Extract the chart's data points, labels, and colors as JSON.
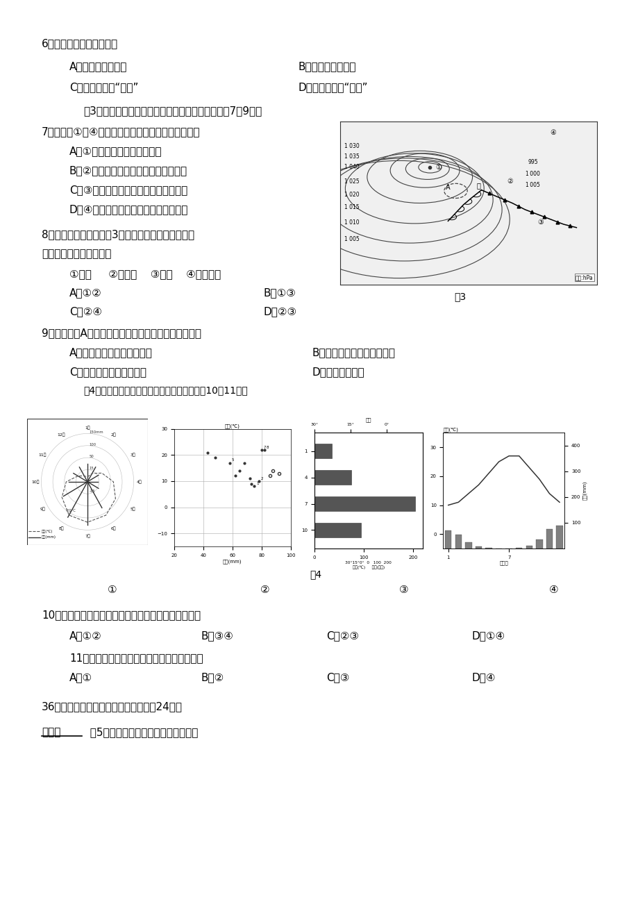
{
  "bg_color": "#ffffff",
  "text_color": "#000000",
  "content": {
    "q6_text": "6．图示区域的地形特点是",
    "q6_A": "A．北缓南陌的山地",
    "q6_B": "B．北陌南缓的山地",
    "q6_C": "C．北缓南陌的“天坑”",
    "q6_D": "D．北陌南缓的“天坑”",
    "fig3_intro": "图3为我国部分地区某日地面天气形势图。读图回筗7～9题。",
    "q7_text": "7．对图中①～④地天气及天气变化的叙述，正确的是",
    "q7_A": "A．①地此时为阴天，气压较高",
    "q7_B": "B．②地此时为大风降温天气，然后转晴",
    "q7_C": "C．③即将迎来阴雨天气，然后气温升高",
    "q7_D": "D．④地此时正受暖气团控制，温暖晴朗",
    "q8_line1": "8．若此天气形势出现在3月，我国西北、华北地区最",
    "q8_line2": "可能出现的灾害性天气是",
    "q8_items": "①寒潮     ②沙尘暴    ③台风    ④特大暴雨",
    "q8_A": "A．①②",
    "q8_B": "B．①③",
    "q8_C": "C．②④",
    "q8_D": "D．②③",
    "q9_text": "9．天气系统A（虚线处）向东移动并经过甲地。则甲地",
    "q9_A": "A．风向由偏南风转为偏西风",
    "q9_B": "B．经历一次降温、降水天气",
    "q9_C": "C．气压先下降然后再上升",
    "q9_D": "D．风力由大变小",
    "fig4_intro": "图4为四种气候类型气温降水资料图。读图完成10～11题。",
    "q10_text": "10．四种气候类型中，某季节气候特征的成因相同的是",
    "q10_A": "A．①②",
    "q10_B": "B．③④",
    "q10_C": "C．②③",
    "q10_D": "D．①④",
    "q11_text": "11．图示各气候类型中，我国只可能有其中的",
    "q11_A": "A．①",
    "q11_B": "B．②",
    "q11_C": "C．③",
    "q11_D": "D．④",
    "q36_text": "36．阅读图文材料，完成下列要求。（24分）",
    "material1_bold": "材料一",
    "material1_rest": "  图5是我国东部某沿海等高线分布图。"
  }
}
